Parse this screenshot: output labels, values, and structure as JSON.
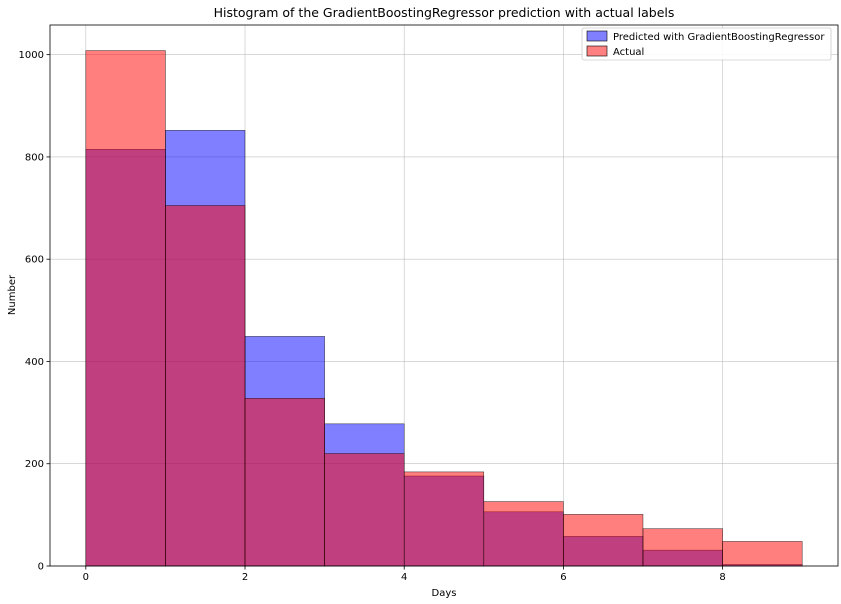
{
  "chart_data": {
    "type": "histogram",
    "title": "Histogram of the GradientBoostingRegressor prediction with actual labels",
    "xlabel": "Days",
    "ylabel": "Number",
    "xlim": [
      -0.45,
      9.45
    ],
    "ylim": [
      0,
      1058
    ],
    "x_ticks": [
      0,
      2,
      4,
      6,
      8
    ],
    "y_ticks": [
      0,
      200,
      400,
      600,
      800,
      1000
    ],
    "grid": true,
    "legend_position": "top-right",
    "bin_edges": [
      0,
      1,
      2,
      3,
      4,
      5,
      6,
      7,
      8,
      9
    ],
    "series": [
      {
        "name": "Predicted with GradientBoostingRegressor",
        "color": "#0000ff",
        "alpha": 0.5,
        "values": [
          815,
          852,
          449,
          278,
          176,
          106,
          58,
          31,
          3
        ]
      },
      {
        "name": "Actual",
        "color": "#ff0000",
        "alpha": 0.5,
        "values": [
          1008,
          705,
          328,
          220,
          184,
          126,
          101,
          73,
          48
        ]
      }
    ]
  }
}
